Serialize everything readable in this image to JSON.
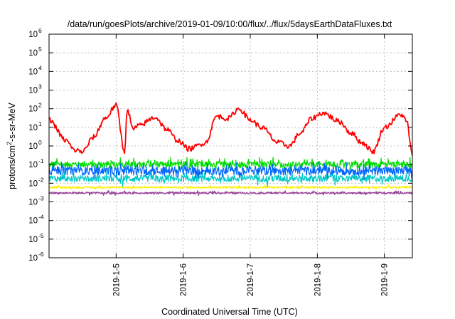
{
  "chart_data": {
    "type": "line",
    "title": "/data/run/goesPlots/archive/2019-01-09/10:00/flux/../flux/5daysEarthDataFluxes.txt",
    "xlabel": "Coordinated Universal Time (UTC)",
    "ylabel": {
      "base": "protons/cm",
      "exponent": "2",
      "rest": "-s-sr-MeV"
    },
    "scale": {
      "y": "log",
      "x": "time"
    },
    "xlim": [
      "2019-01-04 00:00",
      "2019-01-09 10:00"
    ],
    "ylim_log10": [
      -6,
      6
    ],
    "grid": true,
    "legend": "none",
    "x_ticks": [
      {
        "label": "2019-1-5",
        "value": "2019-01-05"
      },
      {
        "label": "2019-1-6",
        "value": "2019-01-06"
      },
      {
        "label": "2019-1-7",
        "value": "2019-01-07"
      },
      {
        "label": "2019-1-8",
        "value": "2019-01-08"
      },
      {
        "label": "2019-1-9",
        "value": "2019-01-09"
      }
    ],
    "y_ticks": [
      {
        "base": "10",
        "exp": "6"
      },
      {
        "base": "10",
        "exp": "5"
      },
      {
        "base": "10",
        "exp": "4"
      },
      {
        "base": "10",
        "exp": "3"
      },
      {
        "base": "10",
        "exp": "2"
      },
      {
        "base": "10",
        "exp": "1"
      },
      {
        "base": "10",
        "exp": "0"
      },
      {
        "base": "10",
        "exp": "-1"
      },
      {
        "base": "10",
        "exp": "-2"
      },
      {
        "base": "10",
        "exp": "-3"
      },
      {
        "base": "10",
        "exp": "-4"
      },
      {
        "base": "10",
        "exp": "-5"
      },
      {
        "base": "10",
        "exp": "-6"
      }
    ],
    "series": [
      {
        "color": "#ff0000",
        "x": [
          "2019-01-04 00:00",
          "2019-01-04 06:00",
          "2019-01-04 09:00",
          "2019-01-04 12:00",
          "2019-01-04 16:00",
          "2019-01-04 20:00",
          "2019-01-05 00:00",
          "2019-01-05 03:00",
          "2019-01-05 04:00",
          "2019-01-05 06:00",
          "2019-01-05 08:00",
          "2019-01-05 14:00",
          "2019-01-05 18:00",
          "2019-01-05 22:00",
          "2019-01-06 02:00",
          "2019-01-06 08:00",
          "2019-01-06 12:00",
          "2019-01-06 16:00",
          "2019-01-06 20:00",
          "2019-01-07 00:00",
          "2019-01-07 04:00",
          "2019-01-07 10:00",
          "2019-01-07 14:00",
          "2019-01-07 18:00",
          "2019-01-07 22:00",
          "2019-01-08 02:00",
          "2019-01-08 08:00",
          "2019-01-08 12:00",
          "2019-01-08 16:00",
          "2019-01-08 20:00",
          "2019-01-09 00:00",
          "2019-01-09 06:00",
          "2019-01-09 08:00",
          "2019-01-09 10:00"
        ],
        "y": [
          25,
          2,
          0.6,
          0.5,
          3,
          30,
          150,
          0.5,
          100,
          8,
          12,
          35,
          8,
          2,
          0.7,
          1.5,
          40,
          30,
          100,
          25,
          10,
          1.5,
          1,
          5,
          30,
          60,
          20,
          5,
          1.5,
          0.5,
          10,
          50,
          20,
          0.3
        ]
      },
      {
        "color": "#00dd00",
        "x": [
          "2019-01-04 00:00",
          "2019-01-09 10:00"
        ],
        "y": [
          0.1,
          0.1
        ]
      },
      {
        "color": "#0066ff",
        "x": [
          "2019-01-04 00:00",
          "2019-01-09 10:00"
        ],
        "y": [
          0.045,
          0.045
        ]
      },
      {
        "color": "#00c8c8",
        "x": [
          "2019-01-04 00:00",
          "2019-01-09 10:00"
        ],
        "y": [
          0.018,
          0.018
        ]
      },
      {
        "color": "#ffee00",
        "x": [
          "2019-01-04 00:00",
          "2019-01-09 10:00"
        ],
        "y": [
          0.006,
          0.006
        ]
      },
      {
        "color": "#994499",
        "x": [
          "2019-01-04 00:00",
          "2019-01-09 10:00"
        ],
        "y": [
          0.003,
          0.003
        ]
      }
    ]
  }
}
